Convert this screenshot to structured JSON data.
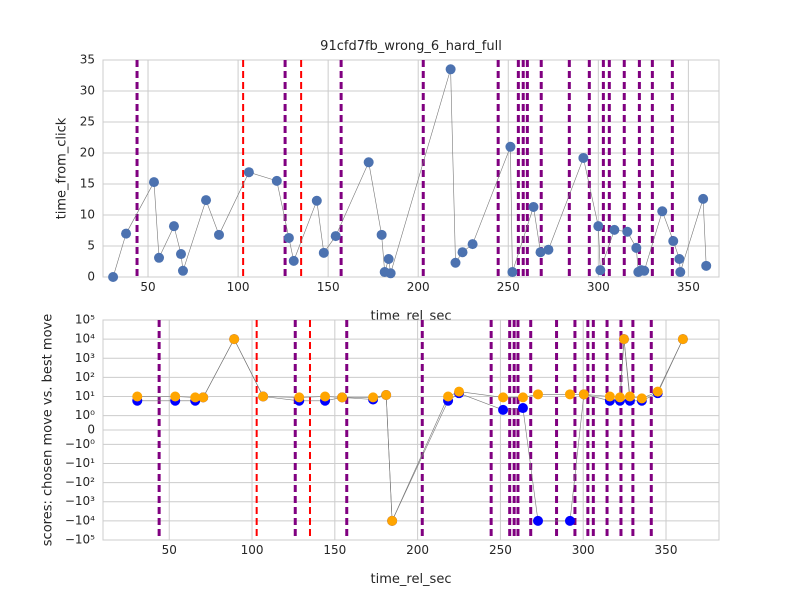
{
  "chart_data": [
    {
      "type": "line",
      "title": "91cfd7fb_wrong_6_hard_full",
      "x_label": "time_rel_sec",
      "y_label": "time_from_click",
      "xlim": [
        25,
        367
      ],
      "ylim": [
        0,
        35
      ],
      "xticks": [
        50,
        100,
        150,
        200,
        250,
        300,
        350
      ],
      "yticks": [
        0,
        5,
        10,
        15,
        20,
        25,
        30,
        35
      ],
      "grid": true,
      "yscale": "linear",
      "x": [
        30.6,
        37.8,
        53.3,
        56.1,
        64.4,
        68.3,
        69.4,
        82.2,
        89.4,
        106,
        121.5,
        128.2,
        130.9,
        143.7,
        147.6,
        154.2,
        172.5,
        179.7,
        181.4,
        183.6,
        184.7,
        218,
        220.7,
        224.6,
        230.2,
        251.2,
        252.3,
        264,
        267.9,
        272.3,
        291.7,
        300,
        301.1,
        308.9,
        316.1,
        321.1,
        322.2,
        323.8,
        325.5,
        335.5,
        341.6,
        345,
        345.5,
        358.2,
        359.9
      ],
      "series": [
        {
          "color": "#4c72b0",
          "values": [
            0,
            7,
            15.3,
            3.1,
            8.2,
            3.7,
            1.0,
            12.4,
            6.8,
            16.9,
            15.5,
            6.3,
            2.6,
            12.3,
            3.9,
            6.6,
            18.5,
            6.8,
            0.8,
            2.9,
            0.6,
            33.5,
            2.3,
            4.0,
            5.3,
            21.0,
            0.8,
            11.3,
            4.0,
            4.4,
            19.2,
            8.2,
            1.1,
            7.6,
            7.3,
            4.7,
            0.8,
            1.1,
            1.0,
            10.6,
            5.8,
            2.9,
            0.8,
            12.6,
            1.8
          ]
        }
      ],
      "vlines": [
        {
          "x": 43.9,
          "color": "purple"
        },
        {
          "x": 102.8,
          "color": "red"
        },
        {
          "x": 126.1,
          "color": "purple"
        },
        {
          "x": 135,
          "color": "red"
        },
        {
          "x": 157.2,
          "color": "purple"
        },
        {
          "x": 202.8,
          "color": "purple"
        },
        {
          "x": 244.4,
          "color": "purple"
        },
        {
          "x": 255.6,
          "color": "purple"
        },
        {
          "x": 258.3,
          "color": "purple"
        },
        {
          "x": 260.6,
          "color": "purple"
        },
        {
          "x": 268.3,
          "color": "purple"
        },
        {
          "x": 283.9,
          "color": "purple"
        },
        {
          "x": 295,
          "color": "purple"
        },
        {
          "x": 302.8,
          "color": "purple"
        },
        {
          "x": 306.1,
          "color": "purple"
        },
        {
          "x": 314.4,
          "color": "purple"
        },
        {
          "x": 322.8,
          "color": "purple"
        },
        {
          "x": 330,
          "color": "purple"
        },
        {
          "x": 341.1,
          "color": "purple"
        }
      ]
    },
    {
      "type": "line",
      "x_label": "time_rel_sec",
      "y_label": "scores: chosen move vs. best move",
      "xlim": [
        10,
        382
      ],
      "ylim": [
        -100000,
        100000
      ],
      "xticks": [
        50,
        100,
        150,
        200,
        250,
        300,
        350
      ],
      "grid": true,
      "yscale": "symlog",
      "linthresh": 1,
      "yticks": [
        {
          "value": 100000,
          "label": "10⁵"
        },
        {
          "value": 10000,
          "label": "10⁴"
        },
        {
          "value": 1000,
          "label": "10³"
        },
        {
          "value": 100,
          "label": "10²"
        },
        {
          "value": 10,
          "label": "10¹"
        },
        {
          "value": 1,
          "label": "10⁰"
        },
        0,
        {
          "value": -1,
          "label": "−10⁰"
        },
        {
          "value": -10,
          "label": "−10¹"
        },
        {
          "value": -100,
          "label": "−10²"
        },
        {
          "value": -1000,
          "label": "−10³"
        },
        {
          "value": -10000,
          "label": "−10⁴"
        },
        {
          "value": -100000,
          "label": "−10⁵"
        }
      ],
      "x": [
        30.7,
        53.6,
        65.7,
        70.5,
        89.2,
        106.7,
        128.5,
        144.1,
        154.4,
        173.1,
        181,
        184.6,
        218.4,
        225,
        251.6,
        263.6,
        272.7,
        292,
        300.4,
        316.1,
        322.2,
        324.6,
        328.2,
        335.4,
        345,
        360.2
      ],
      "series": [
        {
          "color": "#0000ff",
          "values": [
            6,
            6,
            6,
            9,
            10000,
            10,
            6,
            6,
            9,
            7,
            12,
            -10000,
            6,
            15,
            2,
            2.5,
            -10000,
            -10000,
            13,
            6,
            6,
            10000,
            6,
            6,
            15,
            10000
          ]
        },
        {
          "color": "#ffa500",
          "values": [
            10,
            10,
            9,
            9,
            10000,
            10,
            9,
            10,
            9,
            9,
            12,
            -10000,
            10,
            18,
            9,
            9,
            13,
            13,
            13,
            10,
            9,
            10000,
            10,
            8,
            18,
            10000
          ]
        }
      ],
      "vlines": [
        {
          "x": 43.9,
          "color": "purple"
        },
        {
          "x": 102.8,
          "color": "red"
        },
        {
          "x": 126.1,
          "color": "purple"
        },
        {
          "x": 135,
          "color": "red"
        },
        {
          "x": 157.2,
          "color": "purple"
        },
        {
          "x": 202.8,
          "color": "purple"
        },
        {
          "x": 244.4,
          "color": "purple"
        },
        {
          "x": 255.6,
          "color": "purple"
        },
        {
          "x": 258.3,
          "color": "purple"
        },
        {
          "x": 260.6,
          "color": "purple"
        },
        {
          "x": 268.3,
          "color": "purple"
        },
        {
          "x": 283.9,
          "color": "purple"
        },
        {
          "x": 295,
          "color": "purple"
        },
        {
          "x": 302.8,
          "color": "purple"
        },
        {
          "x": 306.1,
          "color": "purple"
        },
        {
          "x": 314.4,
          "color": "purple"
        },
        {
          "x": 322.8,
          "color": "purple"
        },
        {
          "x": 330,
          "color": "purple"
        },
        {
          "x": 341.1,
          "color": "purple"
        }
      ]
    }
  ]
}
